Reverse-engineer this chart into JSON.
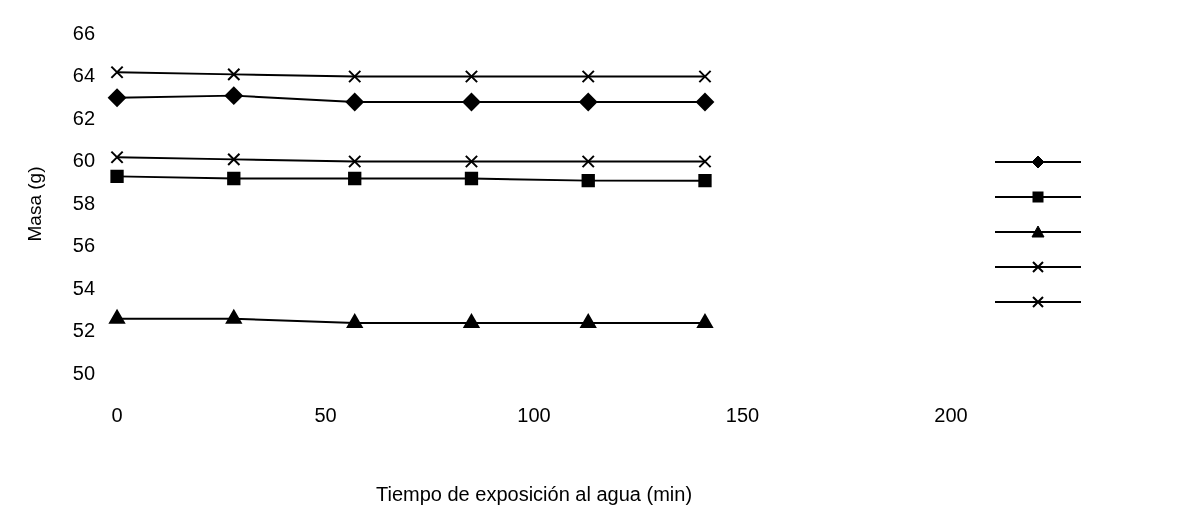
{
  "chart_data": {
    "type": "line",
    "xlabel": "Tiempo de exposición al agua (min)",
    "ylabel": "Masa (g)",
    "xlim": [
      0,
      200
    ],
    "xticks": [
      0,
      50,
      100,
      150,
      200
    ],
    "ylim": [
      50,
      66
    ],
    "yticks": [
      50,
      52,
      54,
      56,
      58,
      60,
      62,
      64,
      66
    ],
    "grid": false,
    "line_style": "solid",
    "x": [
      0,
      28,
      57,
      85,
      113,
      141
    ],
    "series": [
      {
        "color": "#000000",
        "marker": "diamond",
        "values": [
          63.0,
          63.1,
          62.8,
          62.8,
          62.8,
          62.8
        ]
      },
      {
        "color": "#000000",
        "marker": "square",
        "values": [
          59.3,
          59.2,
          59.2,
          59.2,
          59.1,
          59.1
        ]
      },
      {
        "color": "#000000",
        "marker": "triangle",
        "values": [
          52.6,
          52.6,
          52.4,
          52.4,
          52.4,
          52.4
        ]
      },
      {
        "color": "#000000",
        "marker": "cross",
        "values": [
          60.2,
          60.1,
          60.0,
          60.0,
          60.0,
          60.0
        ]
      },
      {
        "color": "#000000",
        "marker": "cross",
        "values": [
          64.2,
          64.1,
          64.0,
          64.0,
          64.0,
          64.0
        ]
      }
    ]
  }
}
